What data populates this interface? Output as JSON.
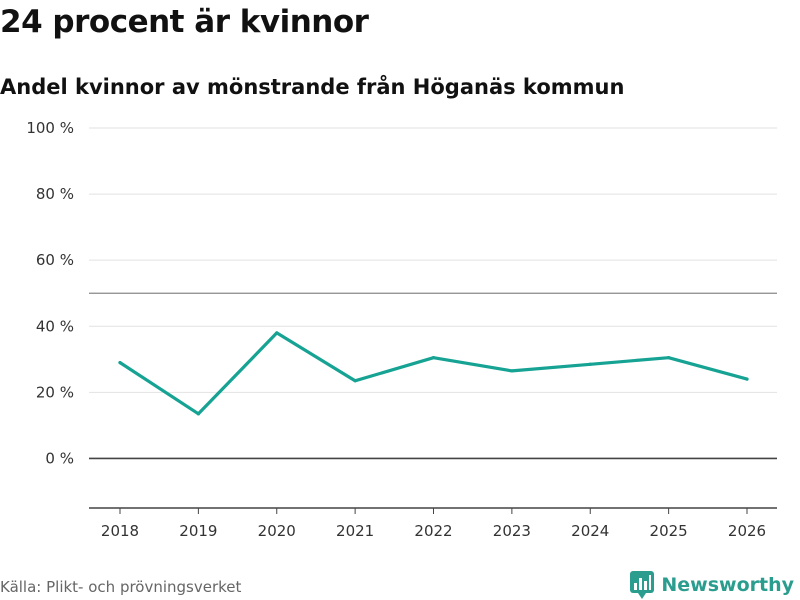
{
  "header": {
    "title": "24 procent är kvinnor",
    "subtitle": "Andel kvinnor av mönstrande från Höganäs kommun"
  },
  "footer": {
    "source": "Källa: Plikt- och prövningsverket",
    "brand": "Newsworthy",
    "brand_color": "#2a9d8f"
  },
  "chart_data": {
    "type": "line",
    "title": "24 procent är kvinnor",
    "subtitle": "Andel kvinnor av mönstrande från Höganäs kommun",
    "xlabel": "",
    "ylabel": "",
    "x": [
      "2018",
      "2019",
      "2020",
      "2021",
      "2022",
      "2023",
      "2024",
      "2025",
      "2026"
    ],
    "series": [
      {
        "name": "Andel kvinnor",
        "color": "#16a394",
        "values": [
          29,
          13.5,
          38,
          23.5,
          30.5,
          26.5,
          28.5,
          30.5,
          24
        ]
      }
    ],
    "ylim": [
      -15,
      100
    ],
    "yticks": [
      0,
      20,
      40,
      60,
      80,
      100
    ],
    "ytick_labels": [
      "0 %",
      "20 %",
      "40 %",
      "60 %",
      "80 %",
      "100 %"
    ],
    "reference_line": 50,
    "grid": true
  }
}
